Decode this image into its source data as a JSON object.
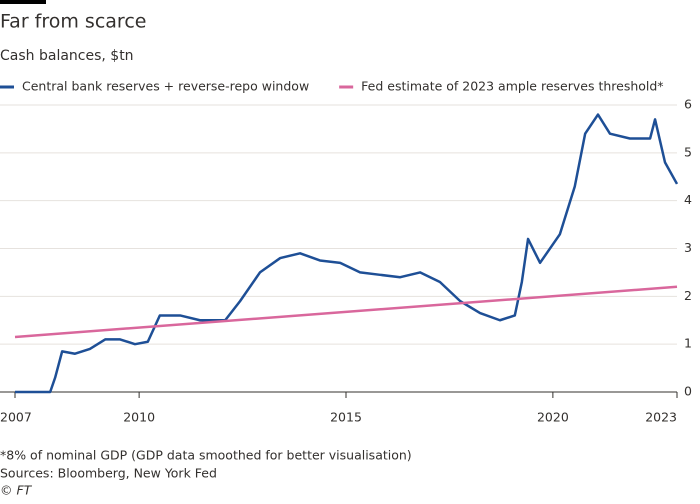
{
  "chart_data": {
    "type": "line",
    "title": "Far from scarce",
    "subtitle": "Cash balances, $tn",
    "x": [
      2007.0,
      2007.85,
      2007.97,
      2008.14,
      2008.45,
      2008.81,
      2009.18,
      2009.54,
      2009.9,
      2010.21,
      2010.5,
      2010.99,
      2011.47,
      2012.08,
      2012.44,
      2012.92,
      2013.41,
      2013.89,
      2014.37,
      2014.86,
      2015.34,
      2015.82,
      2016.31,
      2016.79,
      2017.27,
      2017.76,
      2018.24,
      2018.72,
      2019.08,
      2019.25,
      2019.4,
      2019.69,
      2020.17,
      2020.53,
      2020.78,
      2021.09,
      2021.38,
      2021.86,
      2022.35,
      2022.47,
      2022.71,
      2023.0
    ],
    "series": [
      {
        "name": "Central bank reserves + reverse-repo window",
        "color": "#1e4f96",
        "values": [
          0.0,
          0.0,
          0.3,
          0.85,
          0.8,
          0.9,
          1.1,
          1.1,
          1.0,
          1.05,
          1.6,
          1.6,
          1.5,
          1.5,
          1.9,
          2.5,
          2.8,
          2.9,
          2.75,
          2.7,
          2.5,
          2.45,
          2.4,
          2.5,
          2.3,
          1.9,
          1.65,
          1.5,
          1.6,
          2.3,
          3.2,
          2.7,
          3.3,
          4.3,
          5.4,
          5.8,
          5.4,
          5.3,
          5.3,
          5.7,
          4.8,
          4.35
        ]
      },
      {
        "name": "Fed estimate of 2023 ample reserves threshold*",
        "color": "#d9679c",
        "values": [
          1.15,
          null,
          null,
          null,
          null,
          null,
          null,
          null,
          null,
          null,
          null,
          null,
          null,
          null,
          null,
          null,
          null,
          null,
          null,
          null,
          null,
          null,
          null,
          null,
          null,
          null,
          null,
          null,
          null,
          null,
          null,
          null,
          null,
          null,
          null,
          null,
          null,
          null,
          null,
          null,
          null,
          2.2
        ]
      }
    ],
    "xlim": [
      2007,
      2023
    ],
    "xticks": [
      2007,
      2010,
      2015,
      2020,
      2023
    ],
    "ylim": [
      0,
      6
    ],
    "yticks": [
      0,
      1,
      2,
      3,
      4,
      5,
      6
    ],
    "grid": true,
    "footnote": "*8% of nominal GDP (GDP data smoothed for better visualisation)",
    "source": "Sources: Bloomberg, New York Fed",
    "credit": "© FT"
  }
}
